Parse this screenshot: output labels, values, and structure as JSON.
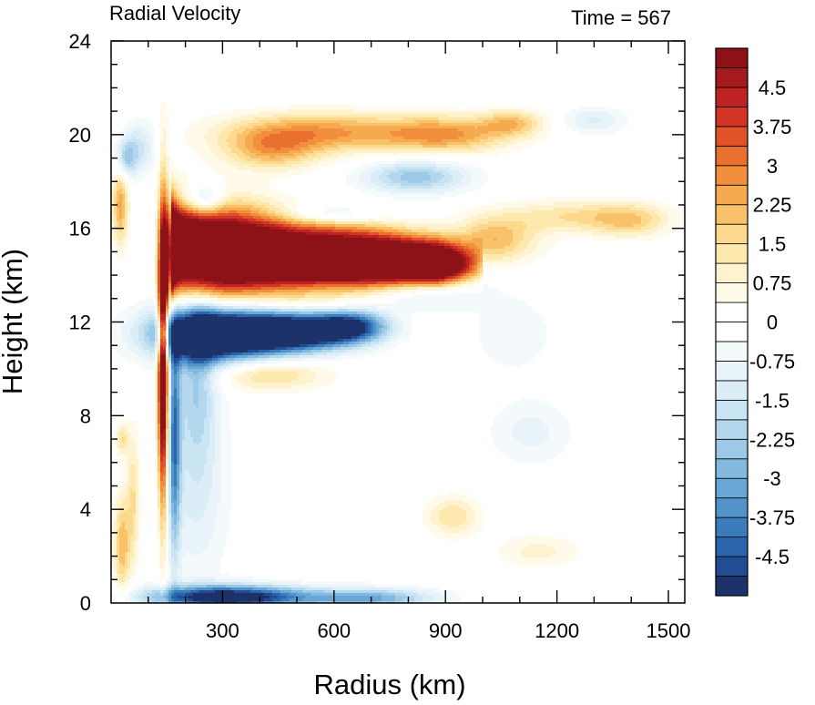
{
  "chart_data": {
    "type": "heatmap",
    "title": "Radial Velocity",
    "right_title": "Time = 567",
    "xlabel": "Radius (km)",
    "ylabel": "Height (km)",
    "xlim": [
      0,
      1500
    ],
    "ylim": [
      0,
      24
    ],
    "x_ticks": [
      "300",
      "600",
      "900",
      "1200",
      "1500"
    ],
    "y_ticks": [
      "0",
      "4",
      "8",
      "12",
      "16",
      "20",
      "24"
    ],
    "colorbar": {
      "levels_min": -5.25,
      "levels_max": 5.25,
      "level_step": 0.375,
      "labels": [
        "4.5",
        "3.75",
        "3",
        "2.25",
        "1.5",
        "0.75",
        "0",
        "-0.75",
        "-1.5",
        "-2.25",
        "-3",
        "-3.75",
        "-4.5"
      ],
      "colors": [
        "#1d3268",
        "#234d93",
        "#2b64ad",
        "#3b7cbd",
        "#5293c9",
        "#6aa7d4",
        "#83b9de",
        "#9ccae6",
        "#b3d8ee",
        "#c9e4f3",
        "#dbedf7",
        "#e9f4fa",
        "#f4f9fc",
        "#ffffff",
        "#ffffff",
        "#fffaea",
        "#fff3cf",
        "#fde9ae",
        "#fcd98c",
        "#f9c26a",
        "#f6aa50",
        "#f28f3d",
        "#ea7030",
        "#e05227",
        "#d13624",
        "#bf2222",
        "#a51b1d",
        "#8c1218"
      ]
    },
    "features": [
      {
        "name": "strong outflow layer",
        "radius_range_km": [
          160,
          960
        ],
        "height_km": 14.5,
        "value": 5.0
      },
      {
        "name": "upper outflow layer",
        "radius_range_km": [
          370,
          1110
        ],
        "height_km": 20.0,
        "value": 2.6
      },
      {
        "name": "upper-level inflow",
        "radius_range_km": [
          190,
          690
        ],
        "height_km": 11.5,
        "value": -4.5
      },
      {
        "name": "boundary layer inflow",
        "radius_range_km": [
          160,
          600
        ],
        "height_km": 0.3,
        "value": -4.0
      },
      {
        "name": "eyewall updraft column",
        "radius_range_km": [
          120,
          180
        ],
        "height_range_km": [
          4,
          17
        ],
        "value": 5.0
      },
      {
        "name": "far outflow patch",
        "radius_range_km": [
          1150,
          1480
        ],
        "height_km": 16.5,
        "value": 1.6
      },
      {
        "name": "far inflow patch",
        "radius_range_km": [
          1230,
          1380
        ],
        "height_km": 20.5,
        "value": -0.9
      }
    ]
  }
}
